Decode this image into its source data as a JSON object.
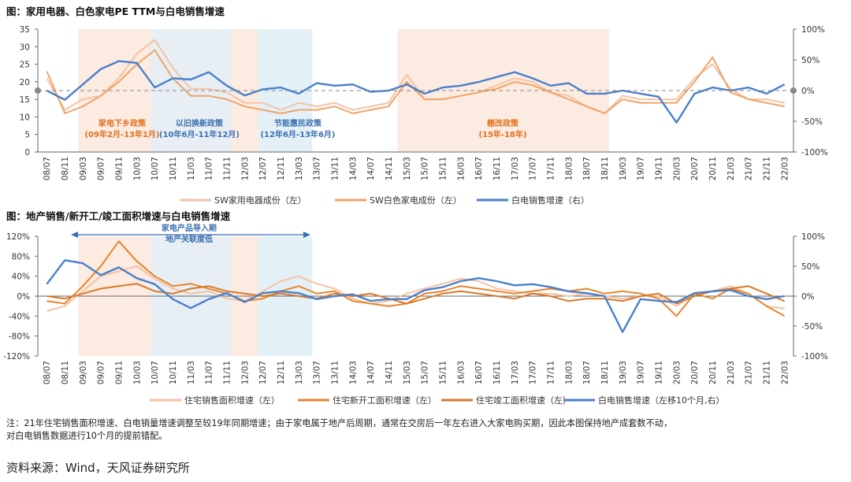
{
  "chart1_title": "图：家用电器、白色家电PE TTM与白电销售增速",
  "chart2_title": "图：地产销售/新开工/竣工面积增速与白电销售增速",
  "note_line1": "注：21年住宅销售面积增速、白电销量增速调整至较19年同期增速；由于家电属于地产后周期，通常在交房后一年左右进入大家电购买期，因此本图保持地产成套数不动，",
  "note_line2": "对白电销售数据进行10个月的提前错配。",
  "source": "资料来源：Wind，天风证券研究所",
  "colors": {
    "sw_appliance": "#F5C2A4",
    "sw_white": "#F0A468",
    "white_sales": "#4A7FCC",
    "starts": "#E8852C",
    "complete": "#D9782A",
    "shade_orange": "#FCEBE0",
    "shade_blue": "#E7EFF4",
    "shade_cyan": "#E3F1F7",
    "annot_orange": "#E0701E",
    "annot_blue": "#3B6FB0",
    "dash": "#8A8A8A"
  },
  "chart_data": [
    {
      "type": "line",
      "title": "图：家用电器、白色家电PE TTM与白电销售增速",
      "categories": [
        "08/07",
        "08/11",
        "09/03",
        "09/07",
        "09/11",
        "10/03",
        "10/07",
        "10/11",
        "11/03",
        "11/07",
        "11/11",
        "12/03",
        "12/07",
        "12/11",
        "13/03",
        "13/07",
        "13/11",
        "14/03",
        "14/07",
        "14/11",
        "15/03",
        "15/07",
        "15/11",
        "16/03",
        "16/07",
        "16/11",
        "17/03",
        "17/07",
        "17/11",
        "18/03",
        "18/07",
        "18/11",
        "19/03",
        "19/07",
        "19/11",
        "20/03",
        "20/07",
        "20/11",
        "21/03",
        "21/07",
        "21/11",
        "22/03"
      ],
      "ylim_left": [
        0,
        35
      ],
      "yticks_left": [
        "0",
        "5",
        "10",
        "15",
        "20",
        "25",
        "30",
        "35"
      ],
      "ylim_right": [
        -100,
        100
      ],
      "yticks_right": [
        "-100%",
        "-50%",
        "0%",
        "50%",
        "100%"
      ],
      "reference_line_right": 0,
      "series": [
        {
          "name": "SW家用电器成份（左）",
          "axis": "left",
          "values": [
            21,
            12,
            15,
            16,
            21,
            28,
            32,
            24,
            18,
            18,
            17,
            14,
            14,
            12,
            14,
            13,
            14,
            12,
            13,
            14,
            22,
            15,
            15,
            16,
            17,
            19,
            21,
            20,
            17,
            16,
            13,
            11,
            16,
            15,
            15,
            15,
            21,
            25,
            18,
            15,
            15,
            14
          ]
        },
        {
          "name": "SW白色家电成份（左）",
          "axis": "left",
          "values": [
            23,
            11,
            13,
            16,
            20,
            25,
            29,
            21,
            16,
            16,
            15,
            13,
            12,
            11,
            12,
            12,
            13,
            11,
            12,
            13,
            20,
            15,
            15,
            16,
            17,
            18,
            20,
            19,
            17,
            15,
            13,
            11,
            15,
            14,
            14,
            14,
            20,
            27,
            17,
            15,
            14,
            13
          ]
        },
        {
          "name": "白电销售增速（右）",
          "axis": "right",
          "values": [
            0,
            -15,
            10,
            35,
            48,
            45,
            5,
            20,
            18,
            30,
            8,
            -8,
            2,
            5,
            -5,
            12,
            8,
            10,
            -2,
            0,
            10,
            -5,
            5,
            8,
            14,
            22,
            30,
            20,
            8,
            12,
            -5,
            -5,
            0,
            -5,
            -10,
            -52,
            -5,
            5,
            0,
            5,
            -5,
            10
          ]
        }
      ],
      "shaded_periods": [
        {
          "label_line1": "家电下乡政策",
          "label_line2": "(09年2月-13年1月)",
          "from": "09/02",
          "to": "13/01"
        },
        {
          "label_line1": "以旧换新政策",
          "label_line2": "(10年6月-11年12月)",
          "from": "10/06",
          "to": "11/12"
        },
        {
          "label_line1": "节能惠民政策",
          "label_line2": "(12年6月-13年6月)",
          "from": "12/06",
          "to": "13/06"
        },
        {
          "label_line1": "棚改政策",
          "label_line2": "(15年-18年)",
          "from": "15/01",
          "to": "18/12"
        }
      ]
    },
    {
      "type": "line",
      "title": "图：地产销售/新开工/竣工面积增速与白电销售增速",
      "categories": [
        "08/07",
        "08/11",
        "09/03",
        "09/07",
        "09/11",
        "10/03",
        "10/07",
        "10/11",
        "11/03",
        "11/07",
        "11/11",
        "12/03",
        "12/07",
        "12/11",
        "13/03",
        "13/07",
        "13/11",
        "14/03",
        "14/07",
        "14/11",
        "15/03",
        "15/07",
        "15/11",
        "16/03",
        "16/07",
        "16/11",
        "17/03",
        "17/07",
        "17/11",
        "18/03",
        "18/07",
        "18/11",
        "19/03",
        "19/07",
        "19/11",
        "20/03",
        "20/07",
        "20/11",
        "21/03",
        "21/07",
        "21/11",
        "22/03"
      ],
      "ylim_left": [
        -120,
        120
      ],
      "yticks_left": [
        "-120%",
        "-80%",
        "-40%",
        "0%",
        "40%",
        "80%",
        "120%"
      ],
      "ylim_right": [
        -100,
        100
      ],
      "yticks_right": [
        "-100%",
        "-50%",
        "0%",
        "50%",
        "100%"
      ],
      "series": [
        {
          "name": "住宅销售面积增速（左）",
          "axis": "left",
          "values": [
            -30,
            -20,
            10,
            40,
            50,
            60,
            35,
            15,
            5,
            10,
            -5,
            -10,
            10,
            30,
            40,
            25,
            15,
            -5,
            -15,
            -10,
            5,
            15,
            25,
            35,
            30,
            15,
            10,
            5,
            5,
            0,
            5,
            0,
            -5,
            0,
            0,
            -20,
            5,
            10,
            20,
            5,
            -20,
            -25
          ]
        },
        {
          "name": "住宅新开工面积增速（左）",
          "axis": "left",
          "values": [
            -10,
            -15,
            20,
            60,
            110,
            70,
            40,
            20,
            25,
            15,
            5,
            -10,
            -5,
            10,
            20,
            5,
            10,
            -10,
            -15,
            -20,
            -15,
            5,
            10,
            20,
            15,
            10,
            5,
            10,
            15,
            10,
            15,
            5,
            10,
            5,
            -5,
            -40,
            5,
            -5,
            15,
            5,
            -20,
            -40
          ]
        },
        {
          "name": "住宅竣工面积增速（左）",
          "axis": "left",
          "values": [
            0,
            -5,
            5,
            15,
            20,
            25,
            10,
            5,
            15,
            20,
            10,
            5,
            0,
            5,
            0,
            -5,
            5,
            0,
            5,
            -5,
            -15,
            -5,
            5,
            10,
            5,
            0,
            -5,
            5,
            0,
            -10,
            -5,
            -5,
            -10,
            0,
            5,
            -15,
            0,
            10,
            15,
            20,
            5,
            -10
          ]
        },
        {
          "name": "白电销售增速（左移10个月,右）",
          "axis": "right",
          "values": [
            20,
            60,
            55,
            35,
            48,
            30,
            20,
            -5,
            -20,
            -5,
            5,
            -10,
            5,
            8,
            5,
            -5,
            0,
            3,
            -8,
            -5,
            -5,
            10,
            15,
            25,
            30,
            25,
            18,
            20,
            15,
            8,
            5,
            0,
            -60,
            -5,
            -8,
            -10,
            5,
            8,
            10,
            0,
            -5,
            0
          ]
        }
      ],
      "shaded_periods": [
        {
          "from": "09/02",
          "to": "13/01"
        },
        {
          "from": "10/06",
          "to": "11/12"
        },
        {
          "from": "12/06",
          "to": "13/06"
        }
      ],
      "annotation_line1": "家电产品导入期",
      "annotation_line2": "地产关联度低"
    }
  ]
}
